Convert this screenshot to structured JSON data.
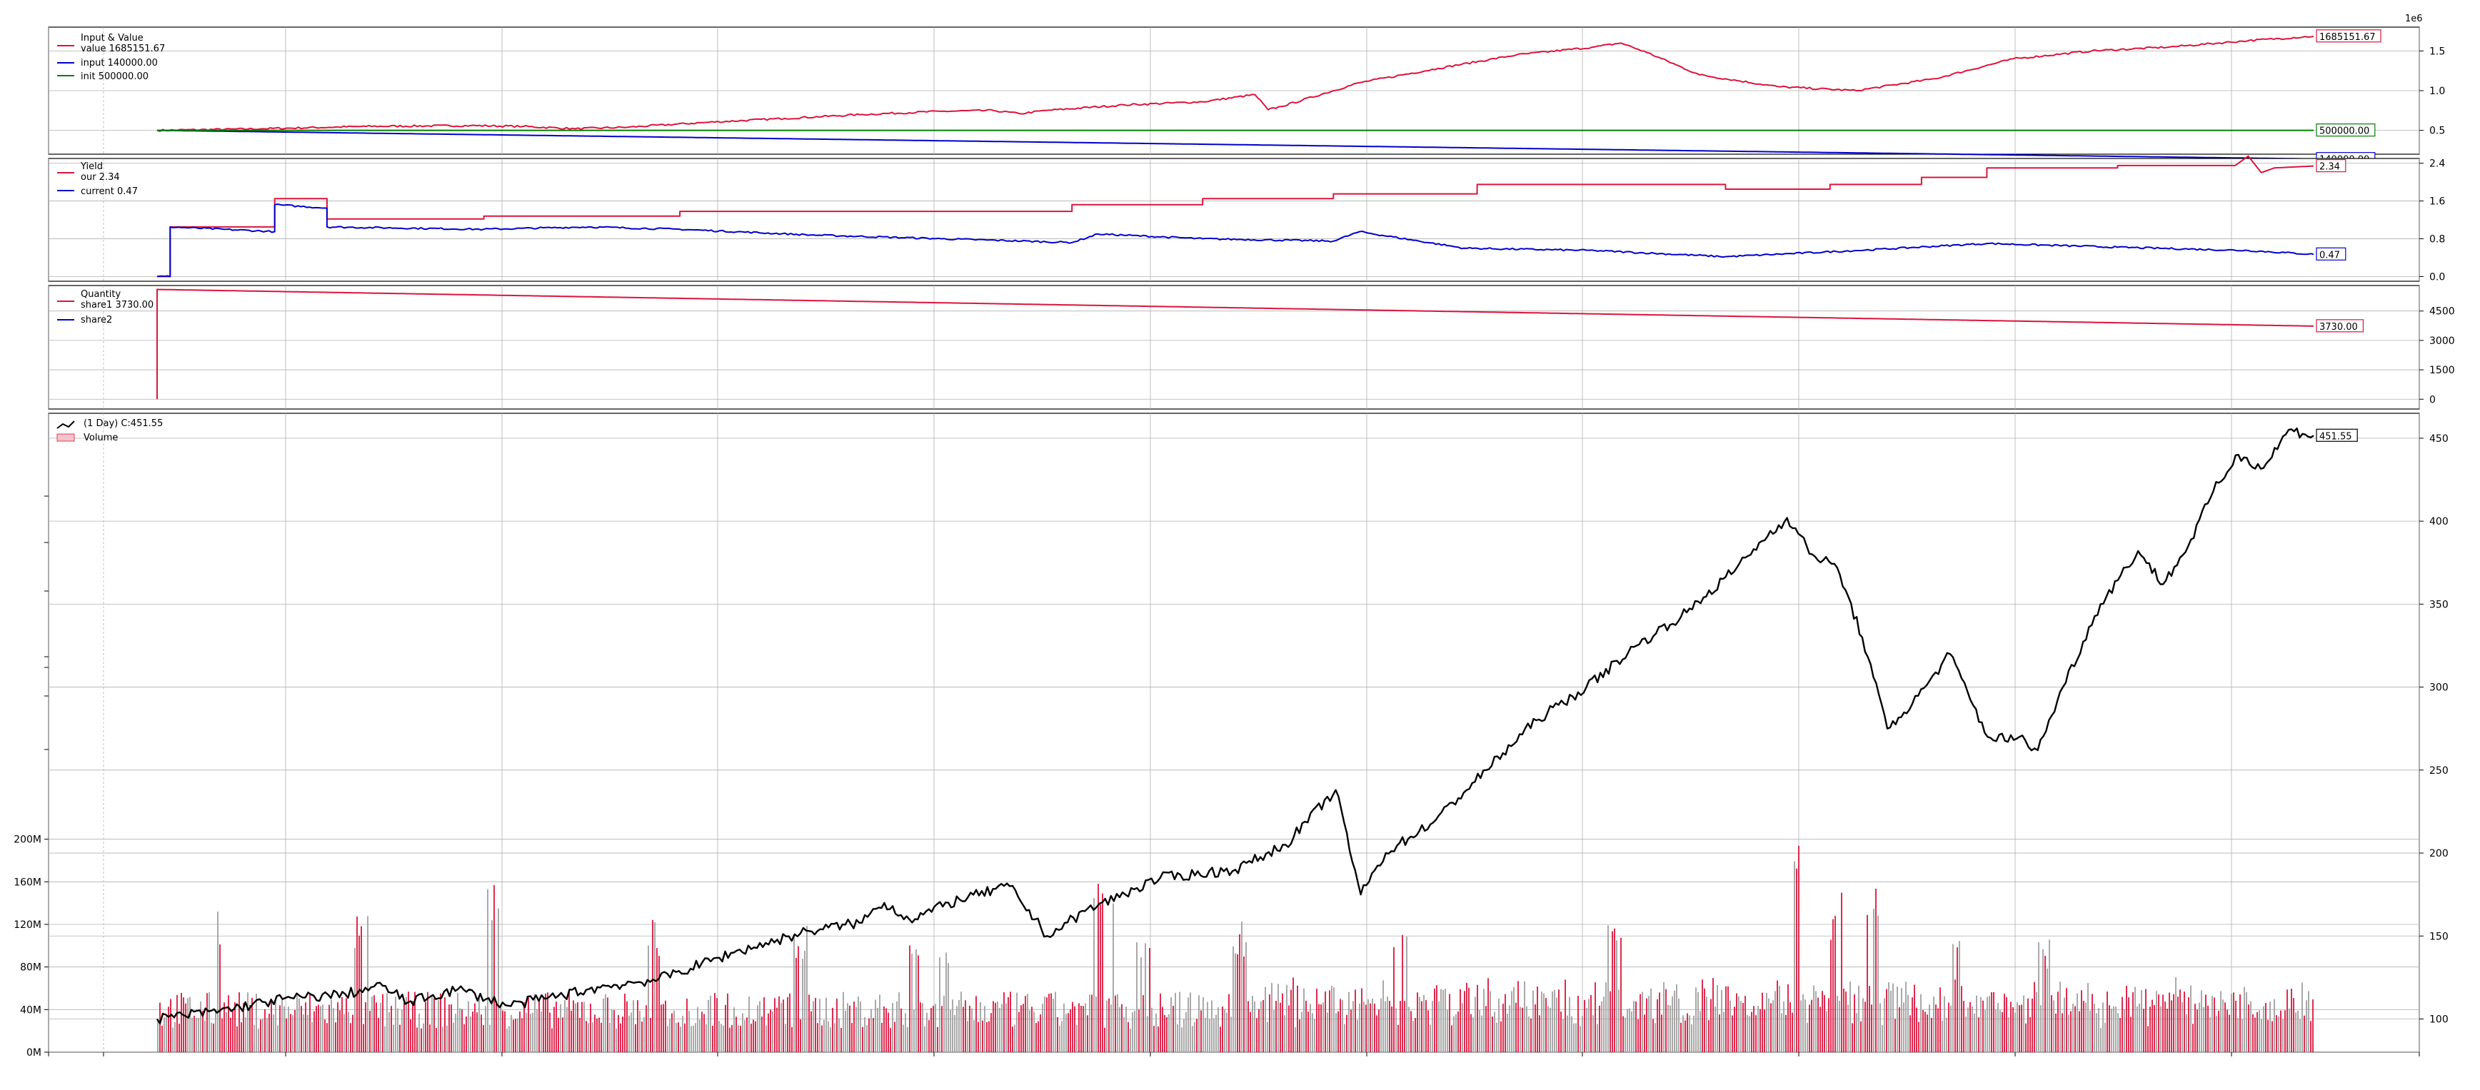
{
  "colors": {
    "value": "#dc143c",
    "input": "#0000cd",
    "init": "#008000",
    "price": "#000000",
    "vol_up": "#a0a0a0",
    "vol_down": "#dc143c",
    "grid": "#b0b0b0"
  },
  "chart_data": [
    {
      "type": "line",
      "legend_title": "Input & Value",
      "legend_placement": "top-left",
      "y_multiplier": "1e6",
      "ylim": [
        0.2,
        1.8
      ],
      "y_ticks": [
        "0.5",
        "1.0",
        "1.5"
      ],
      "y_tick_values": [
        0.5,
        1.0,
        1.5
      ],
      "grid": true,
      "series": [
        {
          "name": "value",
          "legend": "value 1685151.67",
          "last_label": "1685151.67",
          "color": "#dc143c",
          "points": [
            [
              0,
              0.5
            ],
            [
              8,
              0.52
            ],
            [
              16,
              0.55
            ],
            [
              24,
              0.56
            ],
            [
              28,
              0.55
            ],
            [
              32,
              0.52
            ],
            [
              36,
              0.54
            ],
            [
              42,
              0.6
            ],
            [
              48,
              0.65
            ],
            [
              54,
              0.7
            ],
            [
              60,
              0.74
            ],
            [
              64,
              0.75
            ],
            [
              66,
              0.71
            ],
            [
              68,
              0.75
            ],
            [
              74,
              0.82
            ],
            [
              80,
              0.86
            ],
            [
              84,
              0.95
            ],
            [
              85,
              0.76
            ],
            [
              86,
              0.8
            ],
            [
              92,
              1.1
            ],
            [
              98,
              1.28
            ],
            [
              104,
              1.45
            ],
            [
              110,
              1.55
            ],
            [
              112,
              1.6
            ],
            [
              114,
              1.48
            ],
            [
              118,
              1.2
            ],
            [
              124,
              1.05
            ],
            [
              130,
              1.0
            ],
            [
              136,
              1.15
            ],
            [
              142,
              1.4
            ],
            [
              148,
              1.5
            ],
            [
              154,
              1.55
            ],
            [
              160,
              1.63
            ],
            [
              165,
              1.685
            ]
          ]
        },
        {
          "name": "input",
          "legend": "input 140000.00",
          "last_label": "140000.00",
          "color": "#0000cd",
          "points": [
            [
              0,
              0.5
            ],
            [
              165,
              0.14
            ]
          ]
        },
        {
          "name": "init",
          "legend": "init 500000.00",
          "last_label": "500000.00",
          "color": "#008000",
          "points": [
            [
              0,
              0.5
            ],
            [
              165,
              0.5
            ]
          ]
        }
      ]
    },
    {
      "type": "line",
      "legend_title": "Yield",
      "legend_placement": "top-left",
      "ylim": [
        -0.1,
        2.5
      ],
      "y_ticks": [
        "0.0",
        "0.8",
        "1.6",
        "2.4"
      ],
      "y_tick_values": [
        0.0,
        0.8,
        1.6,
        2.4
      ],
      "grid": true,
      "series": [
        {
          "name": "our",
          "legend": "our 2.34",
          "last_label": "2.34",
          "color": "#dc143c",
          "points": [
            [
              0,
              0
            ],
            [
              1,
              0
            ],
            [
              1,
              1.05
            ],
            [
              9,
              1.05
            ],
            [
              9,
              1.65
            ],
            [
              13,
              1.65
            ],
            [
              13,
              1.22
            ],
            [
              25,
              1.22
            ],
            [
              25,
              1.28
            ],
            [
              40,
              1.28
            ],
            [
              40,
              1.38
            ],
            [
              70,
              1.38
            ],
            [
              70,
              1.52
            ],
            [
              80,
              1.52
            ],
            [
              80,
              1.65
            ],
            [
              90,
              1.65
            ],
            [
              90,
              1.75
            ],
            [
              101,
              1.75
            ],
            [
              101,
              1.95
            ],
            [
              120,
              1.95
            ],
            [
              120,
              1.85
            ],
            [
              128,
              1.85
            ],
            [
              128,
              1.95
            ],
            [
              135,
              1.95
            ],
            [
              135,
              2.1
            ],
            [
              140,
              2.1
            ],
            [
              140,
              2.3
            ],
            [
              150,
              2.3
            ],
            [
              150,
              2.35
            ],
            [
              159,
              2.35
            ],
            [
              160,
              2.55
            ],
            [
              161,
              2.2
            ],
            [
              162,
              2.3
            ],
            [
              165,
              2.34
            ]
          ]
        },
        {
          "name": "current",
          "legend": "current 0.47",
          "last_label": "0.47",
          "color": "#0000cd",
          "points": [
            [
              0,
              0
            ],
            [
              1,
              0
            ],
            [
              1,
              1.05
            ],
            [
              9,
              0.95
            ],
            [
              9,
              1.52
            ],
            [
              13,
              1.45
            ],
            [
              13,
              1.05
            ],
            [
              25,
              1.0
            ],
            [
              33,
              1.05
            ],
            [
              40,
              1.0
            ],
            [
              50,
              0.88
            ],
            [
              60,
              0.8
            ],
            [
              70,
              0.72
            ],
            [
              72,
              0.9
            ],
            [
              80,
              0.8
            ],
            [
              90,
              0.75
            ],
            [
              92,
              0.95
            ],
            [
              100,
              0.6
            ],
            [
              110,
              0.55
            ],
            [
              120,
              0.42
            ],
            [
              130,
              0.55
            ],
            [
              140,
              0.7
            ],
            [
              150,
              0.62
            ],
            [
              160,
              0.55
            ],
            [
              165,
              0.47
            ]
          ]
        }
      ]
    },
    {
      "type": "line",
      "legend_title": "Quantity",
      "legend_placement": "top-left",
      "ylim": [
        -500,
        5800
      ],
      "y_ticks": [
        "0",
        "1500",
        "3000",
        "4500"
      ],
      "y_tick_values": [
        0,
        1500,
        3000,
        4500
      ],
      "grid": true,
      "series": [
        {
          "name": "share1",
          "legend": "share1 3730.00",
          "last_label": "3730.00",
          "color": "#dc143c",
          "points": [
            [
              0,
              0
            ],
            [
              0,
              5600
            ],
            [
              165,
              3730
            ]
          ]
        },
        {
          "name": "share2",
          "legend": "share2",
          "color": "#0000cd",
          "points": []
        }
      ]
    },
    {
      "type": "line",
      "legend_title": "(1 Day) C:451.55",
      "legend_volume": "Volume",
      "legend_placement": "top-left",
      "ylim": [
        80,
        465
      ],
      "y_ticks": [
        "100",
        "150",
        "200",
        "250",
        "300",
        "350",
        "400",
        "450"
      ],
      "y_tick_values": [
        100,
        150,
        200,
        250,
        300,
        350,
        400,
        450
      ],
      "volume_ylim": [
        0,
        600
      ],
      "volume_ticks": [
        "0M",
        "40M",
        "80M",
        "120M",
        "160M",
        "200M"
      ],
      "volume_tick_values": [
        0,
        40,
        80,
        120,
        160,
        200
      ],
      "grid": true,
      "series": [
        {
          "name": "price",
          "last_label": "451.55",
          "color": "#000000",
          "points": [
            [
              0,
              100
            ],
            [
              5,
              105
            ],
            [
              10,
              112
            ],
            [
              15,
              115
            ],
            [
              18,
              120
            ],
            [
              20,
              110
            ],
            [
              24,
              118
            ],
            [
              28,
              108
            ],
            [
              32,
              114
            ],
            [
              36,
              120
            ],
            [
              40,
              124
            ],
            [
              46,
              140
            ],
            [
              52,
              153
            ],
            [
              56,
              158
            ],
            [
              58,
              170
            ],
            [
              60,
              160
            ],
            [
              64,
              172
            ],
            [
              68,
              180
            ],
            [
              70,
              160
            ],
            [
              71,
              150
            ],
            [
              74,
              165
            ],
            [
              80,
              185
            ],
            [
              86,
              190
            ],
            [
              90,
              205
            ],
            [
              94,
              238
            ],
            [
              96,
              175
            ],
            [
              98,
              200
            ],
            [
              102,
              220
            ],
            [
              106,
              250
            ],
            [
              110,
              280
            ],
            [
              114,
              300
            ],
            [
              118,
              325
            ],
            [
              122,
              345
            ],
            [
              126,
              372
            ],
            [
              128,
              388
            ],
            [
              130,
              402
            ],
            [
              132,
              380
            ],
            [
              134,
              372
            ],
            [
              136,
              330
            ],
            [
              138,
              275
            ],
            [
              140,
              290
            ],
            [
              143,
              320
            ],
            [
              146,
              270
            ],
            [
              149,
              268
            ],
            [
              150,
              262
            ],
            [
              152,
              300
            ],
            [
              155,
              350
            ],
            [
              158,
              382
            ],
            [
              160,
              362
            ],
            [
              162,
              385
            ],
            [
              164,
              418
            ],
            [
              166,
              440
            ],
            [
              168,
              432
            ],
            [
              170,
              455
            ],
            [
              172,
              451.55
            ]
          ]
        }
      ],
      "volume_series": {
        "name": "Volume"
      }
    }
  ]
}
